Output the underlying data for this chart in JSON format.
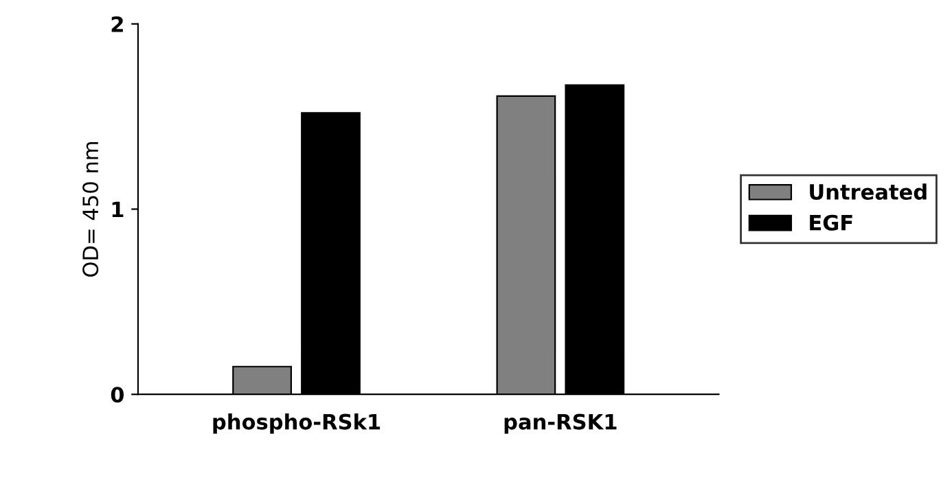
{
  "chart_data": {
    "type": "bar",
    "ylabel": "OD= 450 nm",
    "categories": [
      "phospho-RSk1",
      "pan-RSK1"
    ],
    "series": [
      {
        "name": "Untreated",
        "color": "#808080",
        "values": [
          0.15,
          1.61
        ]
      },
      {
        "name": "EGF",
        "color": "#000000",
        "values": [
          1.52,
          1.67
        ]
      }
    ],
    "ylim": [
      0,
      2
    ],
    "yticks": [
      0,
      1,
      2
    ],
    "grid": false,
    "legend": "right"
  }
}
